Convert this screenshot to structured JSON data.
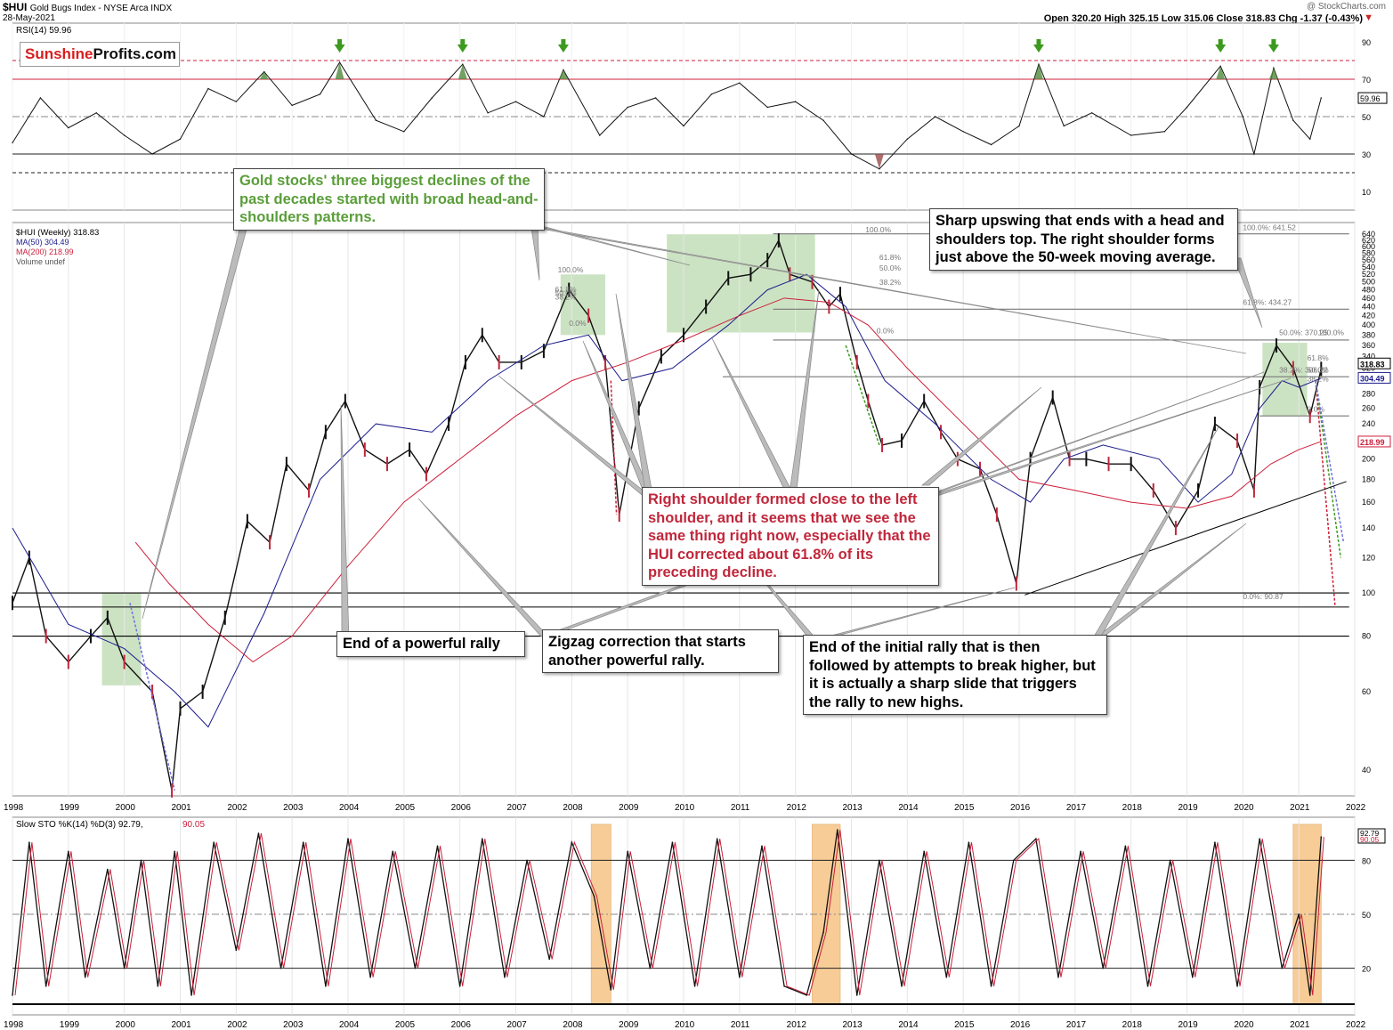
{
  "header": {
    "symbol": "$HUI",
    "name": "Gold Bugs Index - NYSE Arca INDX",
    "date": "28-May-2021",
    "watermark": "@ StockCharts.com",
    "ohlc": "Open 320.20  High 325.15  Low 315.06  Close 318.83  Chg -1.37 (-0.43%)",
    "chg_icon": "down-arrow-icon"
  },
  "brand": {
    "part1": "Sunshine",
    "part2": "Profits.com"
  },
  "colors": {
    "price": "#111111",
    "ma50": "#1c1c8c",
    "ma200": "#cc1f3a",
    "highlight_green": "#8fc27a",
    "highlight_orange": "#f2a443",
    "annotation_green": "#5a9e3a",
    "annotation_red": "#c0273b"
  },
  "legends": {
    "rsi": "RSI(14) 59.96",
    "price_line": "$HUI (Weekly) 318.83",
    "ma50": "MA(50) 304.49",
    "ma200": "MA(200) 218.99",
    "volume": "Volume undef",
    "sto_prefix": "Slow STO %K(14) %D(3) 92.79,",
    "sto_d": "90.05"
  },
  "annotations": {
    "hs_declines": "Gold stocks' three biggest declines of the past decades started with broad head-and-shoulders patterns.",
    "sharp_upswing": "Sharp upswing that ends with a head and shoulders top. The right shoulder forms just above the 50-week moving average.",
    "right_shoulder": "Right shoulder formed close to the left shoulder, and it seems that we see the same thing right now, especially that the HUI corrected about 61.8% of its preceding decline.",
    "powerful_rally": "End of a powerful rally",
    "zigzag": "Zigzag correction that starts another powerful rally.",
    "initial_rally": "End of the initial rally that is then followed by attempts to break higher, but it is actually a sharp slide that triggers the rally to new highs."
  },
  "fib_labels": {
    "f2008_100": "100.0%",
    "f2008_618": "61.8%",
    "f2008_50": "50.0%",
    "f2008_382": "38.2%",
    "f2008_0": "0.0%",
    "f2012_100": "100.0%",
    "f2012_618": "61.8%",
    "f2012_50": "50.0%",
    "f2012_382": "38.2%",
    "f2012_0": "0.0%",
    "r_100": "100.0%: 641.52",
    "r_618": "61.8%: 434.27",
    "r_50": "50.0%: 370.25",
    "r_100b": "100.0%",
    "r_618b": "61.8%",
    "r_50b": "50.0%",
    "r_382": "38.2%: 306.22",
    "r_382b": "38.2%",
    "r_0": "0.0%",
    "r_low": "0.0%: 90.87"
  },
  "chart_data": [
    {
      "type": "line",
      "title": "RSI(14) 59.96",
      "ylim": [
        0,
        100
      ],
      "y_ticks": [
        "10",
        "30",
        "50",
        "70",
        "90"
      ],
      "reference_lines": [
        80,
        70,
        50,
        30,
        20
      ],
      "last_value": "59.96",
      "signal_markers_x": [
        2003.85,
        2006.05,
        2007.85,
        2016.35,
        2019.6,
        2020.55
      ],
      "series": [
        {
          "x": [
            1998,
            1998.5,
            1999,
            1999.5,
            2000,
            2000.5,
            2001,
            2001.5,
            2002,
            2002.5,
            2003,
            2003.5,
            2003.85,
            2004.5,
            2005,
            2005.5,
            2006.05,
            2006.5,
            2007,
            2007.5,
            2007.85,
            2008.5,
            2009,
            2009.5,
            2010,
            2010.5,
            2011,
            2011.5,
            2012,
            2012.5,
            2013,
            2013.5,
            2014,
            2014.5,
            2015,
            2015.5,
            2016,
            2016.35,
            2016.8,
            2017.3,
            2018,
            2018.6,
            2019,
            2019.6,
            2020,
            2020.2,
            2020.55,
            2020.9,
            2021.2,
            2021.4
          ],
          "values": [
            36,
            60,
            44,
            52,
            40,
            30,
            38,
            65,
            58,
            74,
            56,
            62,
            79,
            48,
            42,
            60,
            78,
            52,
            58,
            50,
            75,
            40,
            55,
            60,
            45,
            62,
            68,
            55,
            58,
            48,
            30,
            22,
            38,
            50,
            42,
            35,
            45,
            78,
            45,
            52,
            40,
            42,
            55,
            77,
            50,
            30,
            76,
            48,
            38,
            60
          ]
        }
      ]
    },
    {
      "type": "line",
      "title": "$HUI (Weekly) 318.83",
      "ylabel": "",
      "ylim": [
        35,
        680
      ],
      "scale": "log",
      "y_ticks": [
        "40",
        "60",
        "80",
        "100",
        "120",
        "140",
        "160",
        "180",
        "200",
        "220",
        "240",
        "260",
        "280",
        "300",
        "320",
        "340",
        "360",
        "380",
        "400",
        "420",
        "440",
        "460",
        "480",
        "500",
        "520",
        "540",
        "560",
        "580",
        "600",
        "620",
        "640"
      ],
      "x_ticks": [
        "1998",
        "1999",
        "2000",
        "2001",
        "2002",
        "2003",
        "2004",
        "2005",
        "2006",
        "2007",
        "2008",
        "2009",
        "2010",
        "2011",
        "2012",
        "2013",
        "2014",
        "2015",
        "2016",
        "2017",
        "2018",
        "2019",
        "2020",
        "2021",
        "2022"
      ],
      "series": [
        {
          "name": "$HUI (Weekly)",
          "x": [
            1998,
            1998.3,
            1998.6,
            1999,
            1999.4,
            1999.7,
            2000,
            2000.5,
            2000.85,
            2001,
            2001.4,
            2001.8,
            2002.2,
            2002.6,
            2002.9,
            2003.3,
            2003.6,
            2003.95,
            2004.3,
            2004.7,
            2005.1,
            2005.4,
            2005.8,
            2006.1,
            2006.4,
            2006.7,
            2007.1,
            2007.5,
            2007.95,
            2008.3,
            2008.6,
            2008.85,
            2009.2,
            2009.6,
            2010.0,
            2010.4,
            2010.8,
            2011.2,
            2011.5,
            2011.7,
            2011.9,
            2012.3,
            2012.6,
            2012.8,
            2013.1,
            2013.3,
            2013.55,
            2013.9,
            2014.3,
            2014.6,
            2014.9,
            2015.3,
            2015.6,
            2015.95,
            2016.2,
            2016.6,
            2016.9,
            2017.2,
            2017.6,
            2018.0,
            2018.4,
            2018.8,
            2019.2,
            2019.5,
            2019.9,
            2020.2,
            2020.3,
            2020.6,
            2020.9,
            2021.2,
            2021.4
          ],
          "values": [
            95,
            120,
            80,
            70,
            80,
            88,
            70,
            60,
            36,
            55,
            60,
            88,
            145,
            130,
            195,
            170,
            230,
            270,
            210,
            195,
            210,
            185,
            240,
            330,
            380,
            330,
            330,
            350,
            480,
            420,
            330,
            150,
            260,
            340,
            380,
            440,
            510,
            520,
            560,
            620,
            520,
            500,
            440,
            470,
            330,
            270,
            215,
            220,
            270,
            230,
            200,
            190,
            150,
            105,
            200,
            275,
            200,
            200,
            195,
            195,
            170,
            140,
            170,
            240,
            220,
            170,
            290,
            360,
            320,
            250,
            319
          ]
        },
        {
          "name": "MA(50)",
          "x": [
            1998,
            1999,
            2000,
            2000.9,
            2001.5,
            2002.5,
            2003.5,
            2004.5,
            2005.5,
            2006.5,
            2007.5,
            2008.3,
            2008.9,
            2009.8,
            2010.8,
            2011.5,
            2012.2,
            2012.9,
            2013.6,
            2014.5,
            2015.5,
            2016.2,
            2016.8,
            2017.5,
            2018.5,
            2019.2,
            2019.8,
            2020.3,
            2020.7,
            2021.0,
            2021.4
          ],
          "values": [
            140,
            85,
            75,
            60,
            50,
            90,
            180,
            240,
            230,
            300,
            360,
            380,
            300,
            320,
            400,
            480,
            520,
            440,
            300,
            240,
            180,
            160,
            200,
            215,
            200,
            160,
            185,
            260,
            300,
            290,
            304
          ]
        },
        {
          "name": "MA(200)",
          "x": [
            2000.2,
            2000.8,
            2001.5,
            2002.3,
            2003,
            2004,
            2005,
            2006,
            2007,
            2008,
            2009,
            2010,
            2011,
            2011.8,
            2012.6,
            2013.3,
            2014,
            2015,
            2016,
            2017,
            2018,
            2019,
            2019.8,
            2020.5,
            2021,
            2021.4
          ],
          "values": [
            130,
            105,
            85,
            70,
            80,
            115,
            160,
            200,
            250,
            300,
            330,
            370,
            420,
            460,
            450,
            400,
            320,
            240,
            180,
            170,
            160,
            155,
            165,
            195,
            210,
            219
          ]
        }
      ]
    },
    {
      "type": "line",
      "title": "Slow STO %K(14) %D(3) 92.79, 90.05",
      "ylim": [
        0,
        100
      ],
      "y_ticks": [
        "20",
        "50",
        "80"
      ],
      "reference_lines": [
        80,
        50,
        20
      ],
      "values_shown": [
        "92.79",
        "90.05"
      ],
      "highlights_x": [
        [
          2008.35,
          2008.7
        ],
        [
          2012.3,
          2012.8
        ],
        [
          2020.9,
          2021.4
        ]
      ],
      "series": [
        {
          "name": "%K",
          "x": [
            1998,
            1998.3,
            1998.6,
            1999,
            1999.3,
            1999.7,
            2000,
            2000.3,
            2000.6,
            2000.9,
            2001.2,
            2001.6,
            2002,
            2002.4,
            2002.8,
            2003.2,
            2003.6,
            2004,
            2004.4,
            2004.8,
            2005.2,
            2005.6,
            2006,
            2006.4,
            2006.8,
            2007.2,
            2007.6,
            2008,
            2008.4,
            2008.7,
            2009,
            2009.4,
            2009.8,
            2010.2,
            2010.6,
            2011,
            2011.4,
            2011.8,
            2012.2,
            2012.5,
            2012.75,
            2013.1,
            2013.5,
            2013.9,
            2014.3,
            2014.7,
            2015.1,
            2015.5,
            2015.9,
            2016.3,
            2016.7,
            2017.1,
            2017.5,
            2017.9,
            2018.3,
            2018.7,
            2019.1,
            2019.5,
            2019.9,
            2020.3,
            2020.7,
            2021.0,
            2021.2,
            2021.4
          ],
          "values": [
            5,
            90,
            10,
            85,
            15,
            75,
            20,
            80,
            10,
            85,
            5,
            90,
            30,
            95,
            20,
            90,
            10,
            92,
            15,
            85,
            20,
            88,
            10,
            92,
            15,
            80,
            25,
            90,
            60,
            8,
            85,
            20,
            90,
            10,
            92,
            15,
            88,
            10,
            5,
            40,
            97,
            5,
            80,
            10,
            85,
            15,
            90,
            10,
            80,
            92,
            15,
            85,
            20,
            88,
            10,
            80,
            15,
            90,
            10,
            92,
            20,
            50,
            5,
            93
          ]
        }
      ]
    }
  ]
}
